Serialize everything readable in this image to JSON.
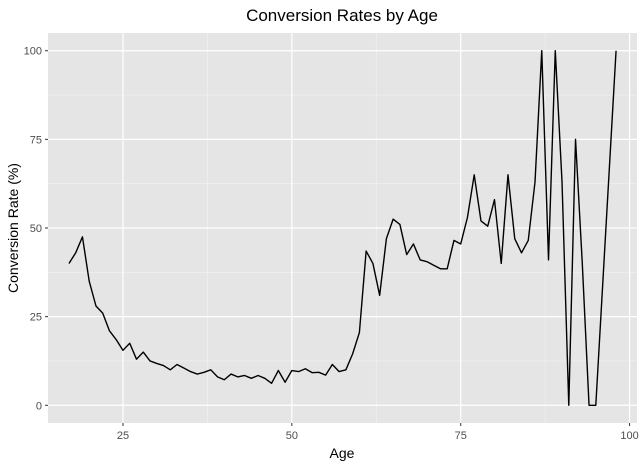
{
  "chart_data": {
    "type": "line",
    "title": "Conversion Rates by Age",
    "xlabel": "Age",
    "ylabel": "Conversion Rate (%)",
    "xlim": [
      13.9,
      101.1
    ],
    "ylim": [
      -5,
      105
    ],
    "x_ticks": [
      25,
      50,
      75,
      100
    ],
    "y_ticks": [
      0,
      25,
      50,
      75,
      100
    ],
    "grid": true,
    "series": [
      {
        "x": [
          17,
          18,
          19,
          20,
          21,
          22,
          23,
          24,
          25,
          26,
          27,
          28,
          29,
          30,
          31,
          32,
          33,
          34,
          35,
          36,
          37,
          38,
          39,
          40,
          41,
          42,
          43,
          44,
          45,
          46,
          47,
          48,
          49,
          50,
          51,
          52,
          53,
          54,
          55,
          56,
          57,
          58,
          59,
          60,
          61,
          62,
          63,
          64,
          65,
          66,
          67,
          68,
          69,
          70,
          71,
          72,
          73,
          74,
          75,
          76,
          77,
          78,
          79,
          80,
          81,
          82,
          83,
          84,
          85,
          86,
          87,
          88,
          89,
          90,
          91,
          92,
          93,
          94,
          95,
          98
        ],
        "values": [
          40,
          43,
          47.5,
          35,
          28,
          26,
          21,
          18.5,
          15.5,
          17.5,
          13,
          15,
          12.5,
          11.8,
          11.2,
          10,
          11.5,
          10.5,
          9.5,
          8.8,
          9.3,
          10,
          8,
          7.2,
          8.8,
          8,
          8.4,
          7.6,
          8.4,
          7.6,
          6.2,
          9.8,
          6.5,
          9.8,
          9.5,
          10.3,
          9.2,
          9.3,
          8.5,
          11.5,
          9.5,
          10,
          14.5,
          20.5,
          43.5,
          40,
          31,
          47,
          52.5,
          51,
          42.5,
          45.5,
          41,
          40.5,
          39.5,
          38.5,
          38.5,
          46.5,
          45.5,
          53,
          65,
          52,
          50.5,
          58,
          40,
          65,
          47,
          43,
          46.5,
          63,
          100,
          41,
          100,
          63,
          0,
          75,
          40,
          0,
          0,
          100
        ]
      }
    ]
  }
}
